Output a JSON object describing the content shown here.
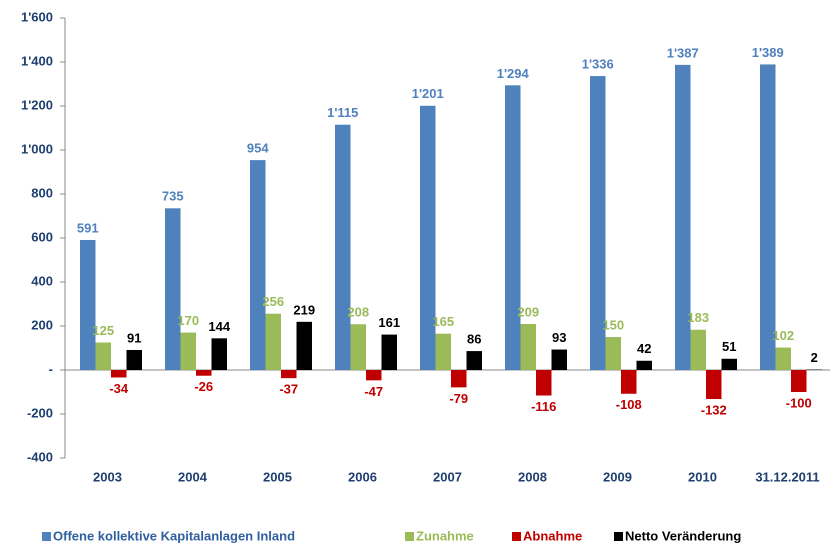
{
  "chart_data": {
    "type": "bar",
    "categories": [
      "2003",
      "2004",
      "2005",
      "2006",
      "2007",
      "2008",
      "2009",
      "2010",
      "31.12.2011"
    ],
    "series": [
      {
        "name": "Offene kollektive Kapitalanlagen Inland",
        "color": "#4F81BD",
        "values": [
          591,
          735,
          954,
          1115,
          1201,
          1294,
          1336,
          1387,
          1389
        ],
        "value_labels": [
          "591",
          "735",
          "954",
          "1'115",
          "1'201",
          "1'294",
          "1'336",
          "1'387",
          "1'389"
        ]
      },
      {
        "name": "Zunahme",
        "color": "#9BBB59",
        "values": [
          125,
          170,
          256,
          208,
          165,
          209,
          150,
          183,
          102
        ]
      },
      {
        "name": "Abnahme",
        "color": "#C00000",
        "values": [
          -34,
          -26,
          -37,
          -47,
          -79,
          -116,
          -108,
          -132,
          -100
        ]
      },
      {
        "name": "Netto Veränderung",
        "color": "#000000",
        "values": [
          91,
          144,
          219,
          161,
          86,
          93,
          42,
          51,
          2
        ]
      }
    ],
    "ylim": [
      -400,
      1600
    ],
    "yticks": [
      -400,
      -200,
      {
        "value": 0,
        "label": "-"
      },
      200,
      400,
      600,
      800,
      {
        "value": 1000,
        "label": "1'000"
      },
      {
        "value": 1200,
        "label": "1'200"
      },
      {
        "value": 1400,
        "label": "1'400"
      },
      {
        "value": 1600,
        "label": "1'600"
      }
    ],
    "legend": "bottom"
  }
}
